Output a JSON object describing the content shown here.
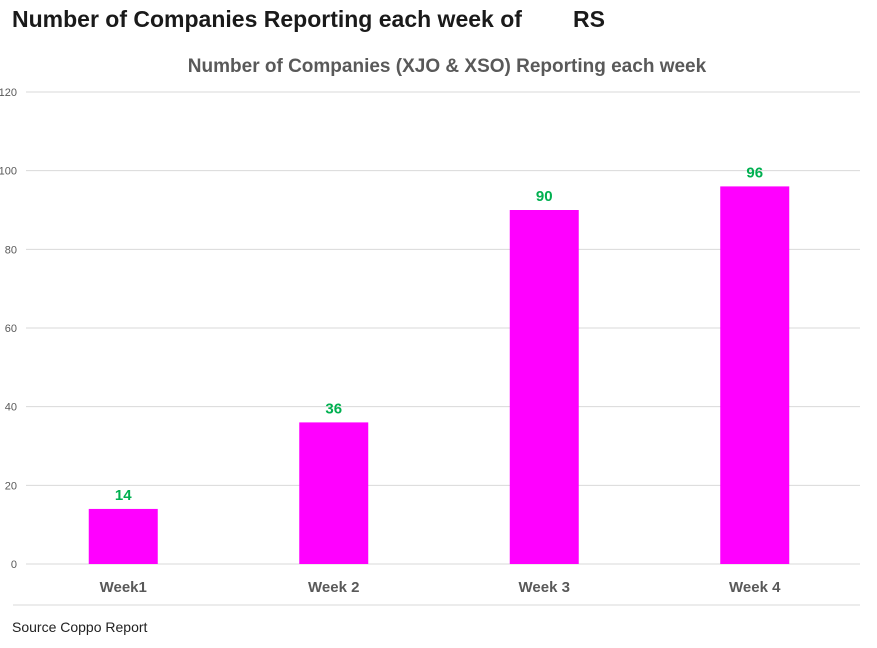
{
  "page": {
    "heading": "Number of Companies Reporting each week of        RS",
    "source": "Source Coppo Report"
  },
  "colors": {
    "bar": "#ff00ff",
    "data_label": "#00b050",
    "grid": "#d9d9d9",
    "axis_text": "#595959"
  },
  "chart_data": {
    "type": "bar",
    "title": "Number of Companies (XJO & XSO)  Reporting each week",
    "categories": [
      "Week1",
      "Week 2",
      "Week 3",
      "Week 4"
    ],
    "values": [
      14,
      36,
      90,
      96
    ],
    "ylim": [
      0,
      120
    ],
    "yticks": [
      0,
      20,
      40,
      60,
      80,
      100,
      120
    ],
    "grid": true,
    "legend": "none",
    "xlabel": "",
    "ylabel": ""
  }
}
